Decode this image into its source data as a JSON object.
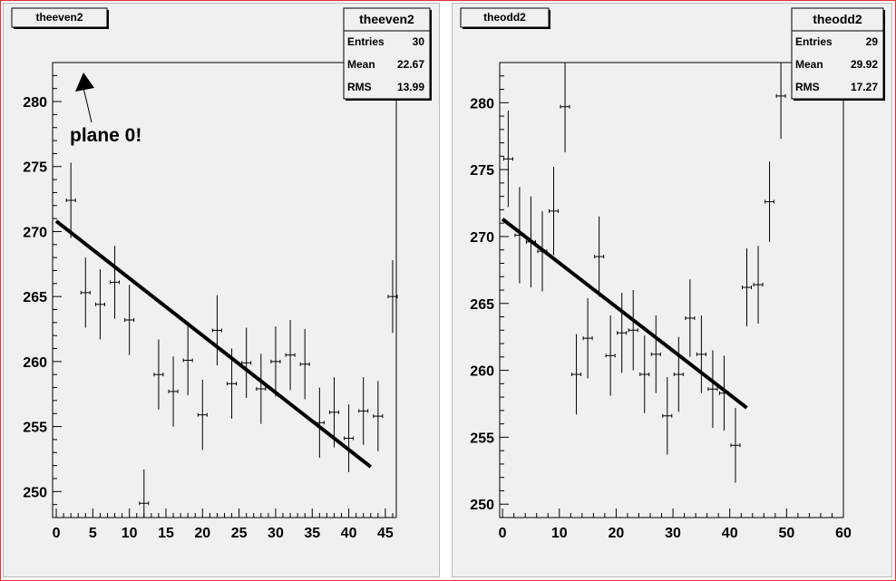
{
  "chart_data": [
    {
      "type": "scatter",
      "title": "theeven2",
      "stats": {
        "name": "theeven2",
        "rows": [
          {
            "label": "Entries",
            "value": "30"
          },
          {
            "label": "Mean",
            "value": "22.67"
          },
          {
            "label": "RMS",
            "value": "13.99"
          }
        ]
      },
      "annotation": "plane 0!",
      "xlim": [
        -0.5,
        46.5
      ],
      "ylim": [
        248,
        283
      ],
      "xticks": [
        "0",
        "5",
        "10",
        "15",
        "20",
        "25",
        "30",
        "35",
        "40",
        "45"
      ],
      "yticks": [
        "250",
        "255",
        "260",
        "265",
        "270",
        "275",
        "280"
      ],
      "points": [
        {
          "x": 2,
          "y": 272.4,
          "err": 2.9
        },
        {
          "x": 4,
          "y": 265.3,
          "err": 2.7
        },
        {
          "x": 6,
          "y": 264.4,
          "err": 2.7
        },
        {
          "x": 8,
          "y": 266.1,
          "err": 2.8
        },
        {
          "x": 10,
          "y": 263.2,
          "err": 2.7
        },
        {
          "x": 12,
          "y": 249.1,
          "err": 2.6
        },
        {
          "x": 14,
          "y": 259.0,
          "err": 2.7
        },
        {
          "x": 16,
          "y": 257.7,
          "err": 2.7
        },
        {
          "x": 18,
          "y": 260.1,
          "err": 2.7
        },
        {
          "x": 20,
          "y": 255.9,
          "err": 2.7
        },
        {
          "x": 22,
          "y": 262.4,
          "err": 2.7
        },
        {
          "x": 24,
          "y": 258.3,
          "err": 2.7
        },
        {
          "x": 26,
          "y": 259.9,
          "err": 2.7
        },
        {
          "x": 28,
          "y": 257.9,
          "err": 2.7
        },
        {
          "x": 30,
          "y": 260.0,
          "err": 2.7
        },
        {
          "x": 32,
          "y": 260.5,
          "err": 2.7
        },
        {
          "x": 34,
          "y": 259.8,
          "err": 2.7
        },
        {
          "x": 36,
          "y": 255.3,
          "err": 2.7
        },
        {
          "x": 38,
          "y": 256.1,
          "err": 2.7
        },
        {
          "x": 40,
          "y": 254.1,
          "err": 2.6
        },
        {
          "x": 42,
          "y": 256.2,
          "err": 2.6
        },
        {
          "x": 44,
          "y": 255.8,
          "err": 2.7
        },
        {
          "x": 46,
          "y": 265.0,
          "err": 2.8
        }
      ],
      "fit": {
        "x": [
          0,
          43
        ],
        "y": [
          270.8,
          251.9
        ]
      }
    },
    {
      "type": "scatter",
      "title": "theodd2",
      "stats": {
        "name": "theodd2",
        "rows": [
          {
            "label": "Entries",
            "value": "29"
          },
          {
            "label": "Mean",
            "value": "29.92"
          },
          {
            "label": "RMS",
            "value": "17.27"
          }
        ]
      },
      "xlim": [
        -0.5,
        60
      ],
      "ylim": [
        249,
        283
      ],
      "xticks": [
        "0",
        "10",
        "20",
        "30",
        "40",
        "50",
        "60"
      ],
      "yticks": [
        "250",
        "255",
        "260",
        "265",
        "270",
        "275",
        "280"
      ],
      "points": [
        {
          "x": 1,
          "y": 275.8,
          "err": 3.6
        },
        {
          "x": 3,
          "y": 270.1,
          "err": 3.6
        },
        {
          "x": 5,
          "y": 269.6,
          "err": 3.4
        },
        {
          "x": 7,
          "y": 268.9,
          "err": 3.0
        },
        {
          "x": 9,
          "y": 271.9,
          "err": 3.3
        },
        {
          "x": 11,
          "y": 279.7,
          "err": 3.4
        },
        {
          "x": 13,
          "y": 259.7,
          "err": 3.0
        },
        {
          "x": 15,
          "y": 262.4,
          "err": 3.0
        },
        {
          "x": 17,
          "y": 268.5,
          "err": 3.0
        },
        {
          "x": 19,
          "y": 261.1,
          "err": 3.0
        },
        {
          "x": 21,
          "y": 262.8,
          "err": 3.0
        },
        {
          "x": 23,
          "y": 263.0,
          "err": 3.0
        },
        {
          "x": 25,
          "y": 259.7,
          "err": 2.9
        },
        {
          "x": 27,
          "y": 261.2,
          "err": 2.9
        },
        {
          "x": 29,
          "y": 256.6,
          "err": 2.9
        },
        {
          "x": 31,
          "y": 259.7,
          "err": 2.8
        },
        {
          "x": 33,
          "y": 263.9,
          "err": 2.9
        },
        {
          "x": 35,
          "y": 261.2,
          "err": 2.9
        },
        {
          "x": 37,
          "y": 258.6,
          "err": 2.9
        },
        {
          "x": 39,
          "y": 258.3,
          "err": 2.8
        },
        {
          "x": 41,
          "y": 254.4,
          "err": 2.8
        },
        {
          "x": 43,
          "y": 266.2,
          "err": 2.9
        },
        {
          "x": 45,
          "y": 266.4,
          "err": 2.9
        },
        {
          "x": 47,
          "y": 272.6,
          "err": 3.0
        },
        {
          "x": 49,
          "y": 280.5,
          "err": 3.2
        }
      ],
      "fit": {
        "x": [
          0,
          43
        ],
        "y": [
          271.3,
          257.2
        ]
      }
    }
  ]
}
